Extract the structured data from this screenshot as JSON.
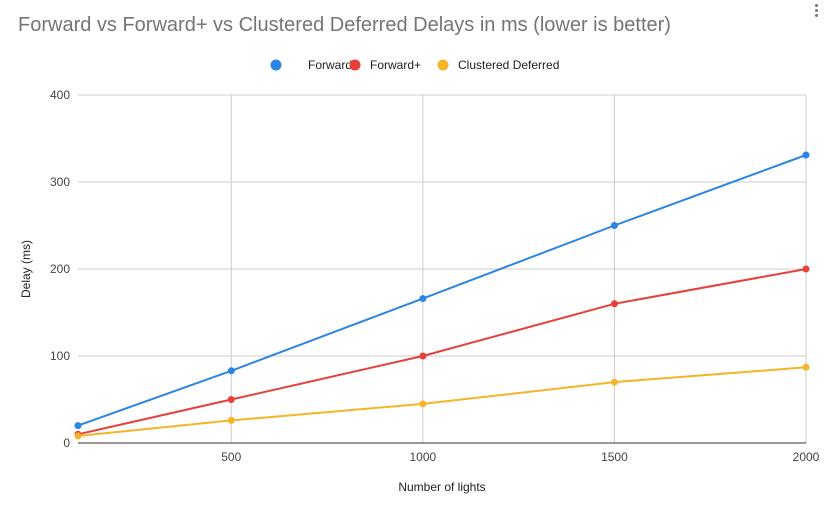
{
  "menu": {
    "icon": "more-vert-icon"
  },
  "chart_data": {
    "type": "line",
    "title": "Forward vs Forward+ vs Clustered Deferred Delays in ms (lower is better)",
    "xlabel": "Number of lights",
    "ylabel": "Delay (ms)",
    "xlim": [
      100,
      2000
    ],
    "ylim": [
      0,
      400
    ],
    "x_ticks": [
      500,
      1000,
      1500,
      2000
    ],
    "y_ticks": [
      0,
      100,
      200,
      300,
      400
    ],
    "x": [
      100,
      500,
      1000,
      1500,
      2000
    ],
    "grid": true,
    "legend_position": "top",
    "series": [
      {
        "name": "Forward",
        "color": "#2a85e4",
        "values": [
          20,
          83,
          166,
          250,
          331
        ]
      },
      {
        "name": "Forward+",
        "color": "#e8403b",
        "values": [
          10,
          50,
          100,
          160,
          200
        ]
      },
      {
        "name": "Clustered Deferred",
        "color": "#f6b427",
        "values": [
          8,
          26,
          45,
          70,
          87
        ]
      }
    ]
  }
}
